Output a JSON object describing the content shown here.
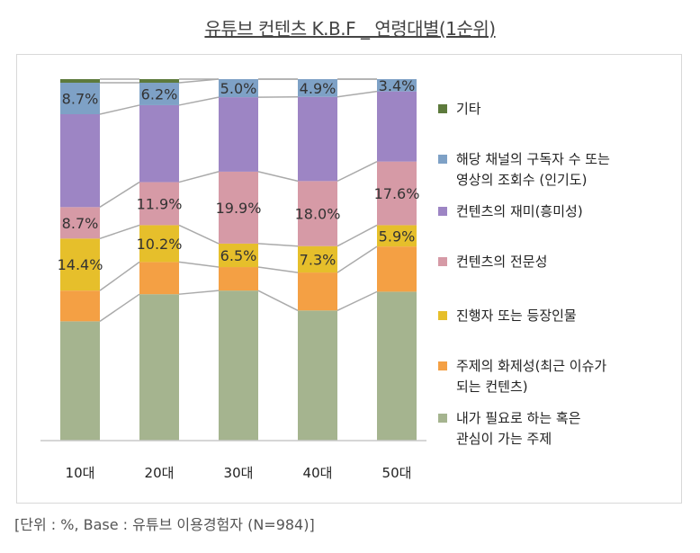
{
  "title": "유튜브 컨텐츠 K.B.F _ 연령대별(1순위)",
  "footnote": "[단위 : %, Base : 유튜브 이용경험자 (N=984)]",
  "chart_data": {
    "type": "bar",
    "stacked": true,
    "normalized_to_100": true,
    "title": "유튜브 컨텐츠 K.B.F _ 연령대별(1순위)",
    "xlabel": "",
    "ylabel": "",
    "ylim": [
      0,
      100
    ],
    "categories": [
      "10대",
      "20대",
      "30대",
      "40대",
      "50대"
    ],
    "series": [
      {
        "name": "내가 필요로 하는 혹은\n관심이 가는 주제",
        "color": "#a5b48f",
        "values": [
          33.0,
          40.5,
          41.5,
          36.0,
          41.2
        ],
        "labels": [
          "",
          "",
          "",
          "",
          ""
        ]
      },
      {
        "name": "주제의 화제성(최근 이슈가\n되는 컨텐츠)",
        "color": "#f4a044",
        "values": [
          8.5,
          8.9,
          6.5,
          10.5,
          12.5
        ],
        "labels": [
          "",
          "",
          "",
          "",
          ""
        ]
      },
      {
        "name": "진행자 또는 등장인물",
        "color": "#e6bf2b",
        "values": [
          14.4,
          10.2,
          6.5,
          7.3,
          5.9
        ],
        "labels": [
          "14.4%",
          "10.2%",
          "6.5%",
          "7.3%",
          "5.9%"
        ]
      },
      {
        "name": "컨텐츠의 전문성",
        "color": "#d69aa6",
        "values": [
          8.7,
          11.9,
          19.9,
          18.0,
          17.6
        ],
        "labels": [
          "8.7%",
          "11.9%",
          "19.9%",
          "18.0%",
          "17.6%"
        ]
      },
      {
        "name": "컨텐츠의 재미(흥미성)",
        "color": "#9d85c4",
        "values": [
          25.7,
          21.3,
          20.6,
          23.3,
          19.4
        ],
        "labels": [
          "",
          "",
          "",
          "",
          ""
        ]
      },
      {
        "name": "해당 채널의 구독자 수 또는\n영상의 조회수 (인기도)",
        "color": "#7ea1c6",
        "values": [
          8.7,
          6.2,
          5.0,
          4.9,
          3.4
        ],
        "labels": [
          "8.7%",
          "6.2%",
          "5.0%",
          "4.9%",
          "3.4%"
        ]
      },
      {
        "name": "기타",
        "color": "#5d7a3c",
        "values": [
          1.0,
          1.0,
          0.0,
          0.0,
          0.0
        ],
        "labels": [
          "",
          "",
          "",
          "",
          ""
        ]
      }
    ],
    "legend": [
      {
        "label": "기타",
        "color": "#5d7a3c"
      },
      {
        "label": "해당 채널의 구독자 수 또는\n영상의 조회수 (인기도)",
        "color": "#7ea1c6"
      },
      {
        "label": "컨텐츠의 재미(흥미성)",
        "color": "#9d85c4"
      },
      {
        "label": "컨텐츠의 전문성",
        "color": "#d69aa6"
      },
      {
        "label": "진행자 또는 등장인물",
        "color": "#e6bf2b"
      },
      {
        "label": "주제의 화제성(최근 이슈가\n되는 컨텐츠)",
        "color": "#f4a044"
      },
      {
        "label": "내가 필요로 하는 혹은\n관심이 가는 주제",
        "color": "#a5b48f"
      }
    ],
    "legend_position": "right",
    "gridlines": false,
    "series_lines": true
  }
}
